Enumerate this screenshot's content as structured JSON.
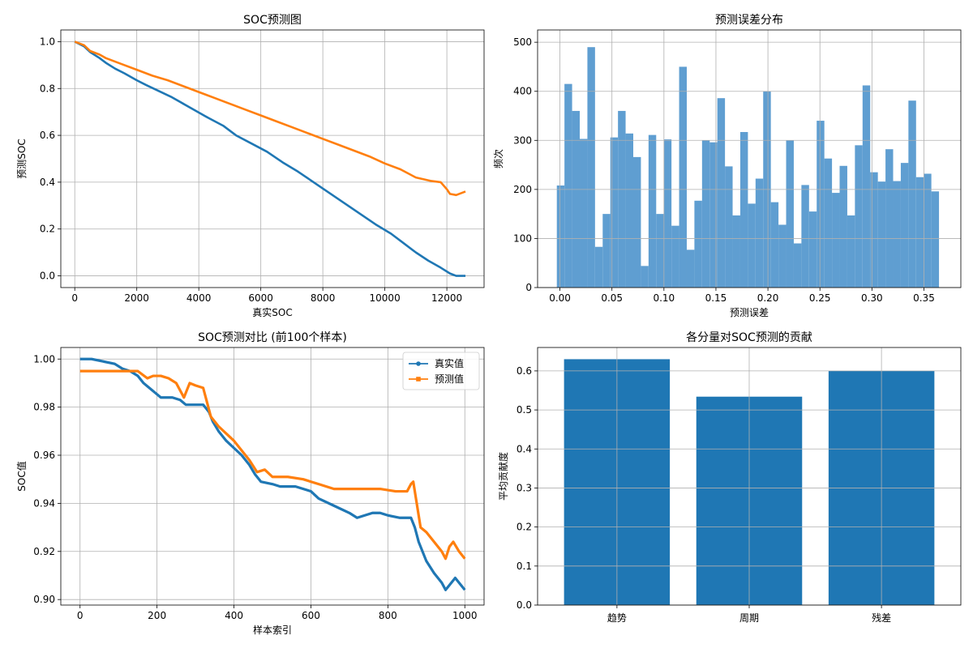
{
  "colors": {
    "blue": "#1f77b4",
    "orange": "#ff7f0e",
    "hist": "#5f9ed1",
    "grid": "#b0b0b0"
  },
  "chart_data": [
    {
      "type": "line",
      "title": "SOC预测图",
      "xlabel": "真实SOC",
      "ylabel": "预测SOC",
      "xlim": [
        -450,
        13200
      ],
      "ylim": [
        -0.05,
        1.05
      ],
      "xticks": [
        0,
        2000,
        4000,
        6000,
        8000,
        10000,
        12000
      ],
      "xtick_labels": [
        "0",
        "2000",
        "4000",
        "6000",
        "8000",
        "10000",
        "12000"
      ],
      "yticks": [
        0,
        0.2,
        0.4,
        0.6,
        0.8,
        1.0
      ],
      "ytick_labels": [
        "0.0",
        "0.2",
        "0.4",
        "0.6",
        "0.8",
        "1.0"
      ],
      "grid": true,
      "series": [
        {
          "color": "#1f77b4",
          "x": [
            0,
            300,
            500,
            800,
            1000,
            1300,
            1600,
            2000,
            2300,
            2700,
            3100,
            3500,
            3900,
            4300,
            4800,
            5200,
            5700,
            6200,
            6700,
            7200,
            7700,
            8200,
            8700,
            9200,
            9700,
            10200,
            10600,
            11000,
            11400,
            11800,
            12100,
            12300,
            12600
          ],
          "y": [
            1.0,
            0.98,
            0.955,
            0.93,
            0.91,
            0.885,
            0.865,
            0.835,
            0.815,
            0.79,
            0.765,
            0.735,
            0.705,
            0.675,
            0.64,
            0.6,
            0.565,
            0.53,
            0.485,
            0.445,
            0.4,
            0.355,
            0.31,
            0.265,
            0.22,
            0.18,
            0.14,
            0.1,
            0.065,
            0.035,
            0.01,
            0.0,
            0.0
          ]
        },
        {
          "color": "#ff7f0e",
          "x": [
            0,
            300,
            500,
            800,
            1000,
            1500,
            2000,
            2500,
            3000,
            3500,
            4000,
            4500,
            5000,
            5500,
            6000,
            6500,
            7000,
            7500,
            8000,
            8500,
            9000,
            9500,
            10000,
            10500,
            11000,
            11500,
            11800,
            12000,
            12100,
            12300,
            12600
          ],
          "y": [
            1.0,
            0.985,
            0.96,
            0.945,
            0.93,
            0.905,
            0.88,
            0.855,
            0.835,
            0.81,
            0.785,
            0.76,
            0.735,
            0.71,
            0.685,
            0.66,
            0.635,
            0.61,
            0.585,
            0.56,
            0.535,
            0.51,
            0.48,
            0.455,
            0.42,
            0.405,
            0.4,
            0.37,
            0.35,
            0.345,
            0.36
          ]
        }
      ]
    },
    {
      "type": "bar",
      "title": "预测误差分布",
      "xlabel": "预测误差",
      "ylabel": "频次",
      "xlim": [
        -0.0215,
        0.3855
      ],
      "ylim": [
        0,
        525
      ],
      "xticks": [
        0.0,
        0.05,
        0.1,
        0.15,
        0.2,
        0.25,
        0.3,
        0.35
      ],
      "xtick_labels": [
        "0.00",
        "0.05",
        "0.10",
        "0.15",
        "0.20",
        "0.25",
        "0.30",
        "0.35"
      ],
      "yticks": [
        0,
        100,
        200,
        300,
        400,
        500
      ],
      "ytick_labels": [
        "0",
        "100",
        "200",
        "300",
        "400",
        "500"
      ],
      "grid": true,
      "bin_start": -0.003,
      "bin_width": 0.00735,
      "values": [
        208,
        415,
        360,
        303,
        490,
        83,
        150,
        306,
        360,
        314,
        266,
        44,
        311,
        150,
        302,
        126,
        450,
        77,
        177,
        300,
        296,
        386,
        247,
        147,
        317,
        171,
        222,
        400,
        174,
        128,
        300,
        90,
        209,
        155,
        340,
        263,
        193,
        248,
        147,
        290,
        412,
        235,
        216,
        282,
        217,
        254,
        381,
        225,
        232,
        196
      ]
    },
    {
      "type": "line",
      "title": "SOC预测对比 (前100个样本)",
      "xlabel": "样本索引",
      "ylabel": "SOC值",
      "xlim": [
        -50,
        1050
      ],
      "ylim": [
        0.8977,
        1.0048
      ],
      "xticks": [
        0,
        200,
        400,
        600,
        800,
        1000
      ],
      "xtick_labels": [
        "0",
        "200",
        "400",
        "600",
        "800",
        "1000"
      ],
      "yticks": [
        0.9,
        0.92,
        0.94,
        0.96,
        0.98,
        1.0
      ],
      "ytick_labels": [
        "0.90",
        "0.92",
        "0.94",
        "0.96",
        "0.98",
        "1.00"
      ],
      "grid": true,
      "legend": "upper-right",
      "series": [
        {
          "name": "真实值",
          "color": "#1f77b4",
          "x": [
            0,
            30,
            60,
            90,
            110,
            130,
            150,
            165,
            180,
            195,
            210,
            240,
            260,
            275,
            290,
            320,
            335,
            345,
            360,
            380,
            400,
            420,
            440,
            455,
            470,
            500,
            520,
            560,
            600,
            620,
            660,
            700,
            720,
            740,
            760,
            780,
            800,
            830,
            860,
            870,
            880,
            900,
            920,
            940,
            950,
            960,
            975,
            990,
            1000
          ],
          "y": [
            1.0,
            1.0,
            0.999,
            0.998,
            0.996,
            0.995,
            0.993,
            0.99,
            0.988,
            0.986,
            0.984,
            0.984,
            0.983,
            0.981,
            0.981,
            0.981,
            0.978,
            0.974,
            0.97,
            0.966,
            0.963,
            0.96,
            0.956,
            0.952,
            0.949,
            0.948,
            0.947,
            0.947,
            0.945,
            0.942,
            0.939,
            0.936,
            0.934,
            0.935,
            0.936,
            0.936,
            0.935,
            0.934,
            0.934,
            0.93,
            0.924,
            0.916,
            0.911,
            0.907,
            0.904,
            0.906,
            0.909,
            0.906,
            0.904
          ]
        },
        {
          "name": "预测值",
          "color": "#ff7f0e",
          "x": [
            0,
            30,
            60,
            100,
            150,
            175,
            190,
            210,
            230,
            250,
            270,
            285,
            300,
            320,
            330,
            340,
            360,
            380,
            400,
            420,
            440,
            460,
            480,
            500,
            540,
            580,
            620,
            660,
            700,
            740,
            780,
            820,
            850,
            860,
            866,
            875,
            885,
            900,
            920,
            940,
            950,
            960,
            970,
            985,
            1000
          ],
          "y": [
            0.995,
            0.995,
            0.995,
            0.995,
            0.995,
            0.992,
            0.993,
            0.993,
            0.992,
            0.99,
            0.984,
            0.99,
            0.989,
            0.988,
            0.982,
            0.976,
            0.972,
            0.969,
            0.966,
            0.962,
            0.958,
            0.953,
            0.954,
            0.951,
            0.951,
            0.95,
            0.948,
            0.946,
            0.946,
            0.946,
            0.946,
            0.945,
            0.945,
            0.948,
            0.949,
            0.94,
            0.93,
            0.928,
            0.924,
            0.92,
            0.917,
            0.922,
            0.924,
            0.92,
            0.917
          ]
        }
      ]
    },
    {
      "type": "bar",
      "title": "各分量对SOC预测的贡献",
      "xlabel": "",
      "ylabel": "平均贡献度",
      "xlim": [
        -0.6,
        2.6
      ],
      "ylim": [
        0,
        0.66
      ],
      "categories": [
        "趋势",
        "周期",
        "残差"
      ],
      "values": [
        0.63,
        0.534,
        0.6
      ],
      "yticks": [
        0,
        0.1,
        0.2,
        0.3,
        0.4,
        0.5,
        0.6
      ],
      "ytick_labels": [
        "0.0",
        "0.1",
        "0.2",
        "0.3",
        "0.4",
        "0.5",
        "0.6"
      ],
      "grid": true
    }
  ]
}
